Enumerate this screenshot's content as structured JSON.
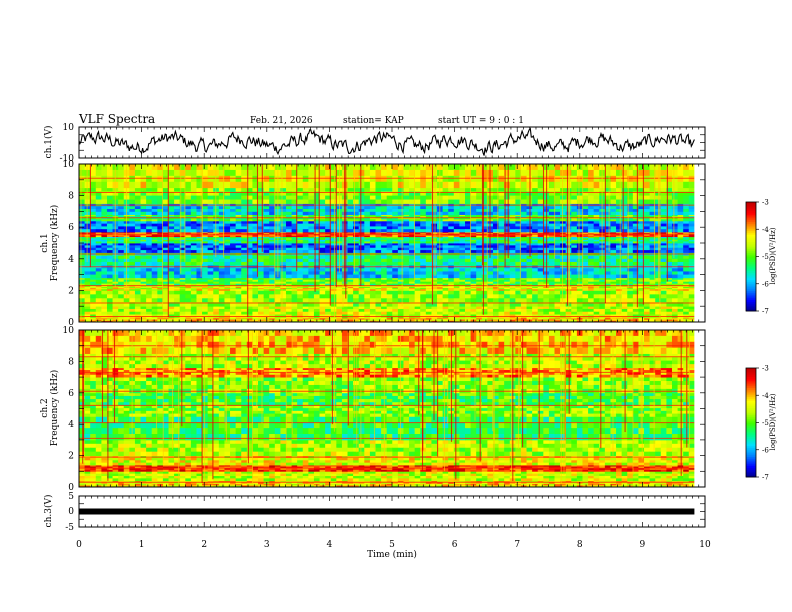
{
  "header": {
    "title": "VLF Spectra",
    "date": "Feb. 21, 2026",
    "station": "station= KAP",
    "start": "start  UT  =  9 : 0  : 1"
  },
  "colors": {
    "trace": "#000000",
    "colormap": [
      "#000080",
      "#0000ff",
      "#0080ff",
      "#00e0ff",
      "#00ff80",
      "#40ff00",
      "#c0ff00",
      "#ffff00",
      "#ff8000",
      "#ff0000",
      "#c00000"
    ]
  },
  "chart_data": [
    {
      "type": "line",
      "name": "ch1-waveform",
      "ylabel": "ch.1(V)",
      "ylim": [
        -10,
        10
      ],
      "yticks": [
        "10",
        "-10"
      ],
      "xlim": [
        0,
        10
      ],
      "x_end": 9.83,
      "samples": 600
    },
    {
      "type": "heatmap",
      "name": "ch1-spectrogram",
      "ylabel_prefix": "ch.1",
      "ylabel": "Frequency  (kHz)",
      "xlim": [
        0,
        10
      ],
      "x_end": 9.83,
      "ylim": [
        0,
        10
      ],
      "yticks": [
        "0",
        "2",
        "4",
        "6",
        "8",
        "10"
      ],
      "colorbar": {
        "label": "log(PSD)(V²/Hz)",
        "range": [
          -7,
          -3
        ],
        "ticks": [
          "-3",
          "-4",
          "-5",
          "-6",
          "-7"
        ]
      },
      "bands_khz": [
        {
          "from": 0.0,
          "to": 0.3,
          "level": 0.72
        },
        {
          "from": 0.3,
          "to": 1.0,
          "level": 0.62
        },
        {
          "from": 1.0,
          "to": 2.0,
          "level": 0.58
        },
        {
          "from": 2.0,
          "to": 2.3,
          "level": 0.66
        },
        {
          "from": 2.3,
          "to": 2.8,
          "level": 0.5
        },
        {
          "from": 2.8,
          "to": 3.6,
          "level": 0.3
        },
        {
          "from": 3.6,
          "to": 4.4,
          "level": 0.4
        },
        {
          "from": 4.4,
          "to": 5.0,
          "level": 0.2
        },
        {
          "from": 5.0,
          "to": 5.4,
          "level": 0.42
        },
        {
          "from": 5.4,
          "to": 5.7,
          "level": 0.85
        },
        {
          "from": 5.7,
          "to": 6.4,
          "level": 0.22
        },
        {
          "from": 6.4,
          "to": 6.8,
          "level": 0.48
        },
        {
          "from": 6.8,
          "to": 7.5,
          "level": 0.3
        },
        {
          "from": 7.5,
          "to": 8.5,
          "level": 0.55
        },
        {
          "from": 8.5,
          "to": 10.0,
          "level": 0.65
        }
      ],
      "lines_khz": [
        0.35,
        1.2,
        2.3,
        3.5,
        4.3,
        5.55,
        6.6,
        7.4,
        8.2,
        9.1
      ]
    },
    {
      "type": "heatmap",
      "name": "ch2-spectrogram",
      "ylabel_prefix": "ch.2",
      "ylabel": "Frequency  (kHz)",
      "xlim": [
        0,
        10
      ],
      "x_end": 9.83,
      "ylim": [
        0,
        10
      ],
      "yticks": [
        "0",
        "2",
        "4",
        "6",
        "8",
        "10"
      ],
      "colorbar": {
        "label": "log(PSD)(V²/Hz)",
        "range": [
          -7,
          -3
        ],
        "ticks": [
          "-3",
          "-4",
          "-5",
          "-6",
          "-7"
        ]
      },
      "bands_khz": [
        {
          "from": 0.0,
          "to": 0.4,
          "level": 0.7
        },
        {
          "from": 0.4,
          "to": 1.0,
          "level": 0.62
        },
        {
          "from": 1.0,
          "to": 1.4,
          "level": 0.88
        },
        {
          "from": 1.4,
          "to": 2.0,
          "level": 0.66
        },
        {
          "from": 2.0,
          "to": 3.0,
          "level": 0.6
        },
        {
          "from": 3.0,
          "to": 4.5,
          "level": 0.46
        },
        {
          "from": 4.5,
          "to": 5.2,
          "level": 0.55
        },
        {
          "from": 5.2,
          "to": 6.0,
          "level": 0.48
        },
        {
          "from": 6.0,
          "to": 7.0,
          "level": 0.56
        },
        {
          "from": 7.0,
          "to": 7.6,
          "level": 0.78
        },
        {
          "from": 7.6,
          "to": 8.5,
          "level": 0.6
        },
        {
          "from": 8.5,
          "to": 10.0,
          "level": 0.72
        }
      ],
      "lines_khz": [
        0.3,
        1.2,
        1.9,
        3.1,
        4.1,
        5.2,
        6.1,
        7.3,
        8.3,
        9.0
      ]
    },
    {
      "type": "line",
      "name": "ch3-waveform",
      "ylabel": "ch.3(V)",
      "ylim": [
        -5,
        5
      ],
      "yticks": [
        "5",
        "0",
        "-5"
      ],
      "xlim": [
        0,
        10
      ],
      "x_end": 9.83,
      "value": 0.0
    }
  ],
  "x_axis": {
    "label": "Time  (min)",
    "ticks": [
      "0",
      "1",
      "2",
      "3",
      "4",
      "5",
      "6",
      "7",
      "8",
      "9",
      "10"
    ]
  }
}
